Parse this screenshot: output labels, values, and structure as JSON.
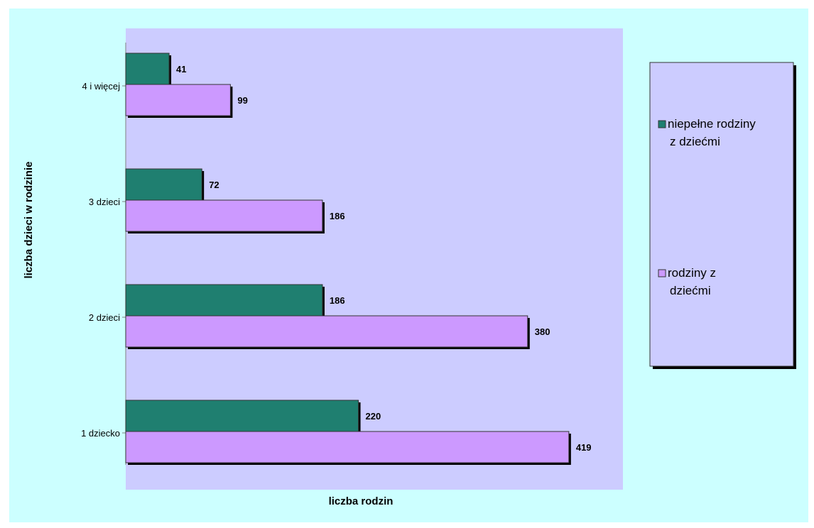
{
  "chart_data": {
    "type": "bar",
    "orientation": "horizontal",
    "categories": [
      "1 dziecko",
      "2 dzieci",
      "3 dzieci",
      "4 i więcej"
    ],
    "series": [
      {
        "name": "niepełne rodziny z dziećmi",
        "values": [
          220,
          186,
          72,
          41
        ],
        "color": "#1f7f70"
      },
      {
        "name": "rodziny z dziećmi",
        "values": [
          419,
          380,
          186,
          99
        ],
        "color": "#cc99ff"
      }
    ],
    "xlabel": "liczba rodzin",
    "ylabel": "liczba dzieci w rodzinie",
    "xlim": [
      0,
      450
    ],
    "grid": false,
    "legend_position": "right",
    "plot_background": "#ccccff",
    "page_background": "#ccffff"
  }
}
